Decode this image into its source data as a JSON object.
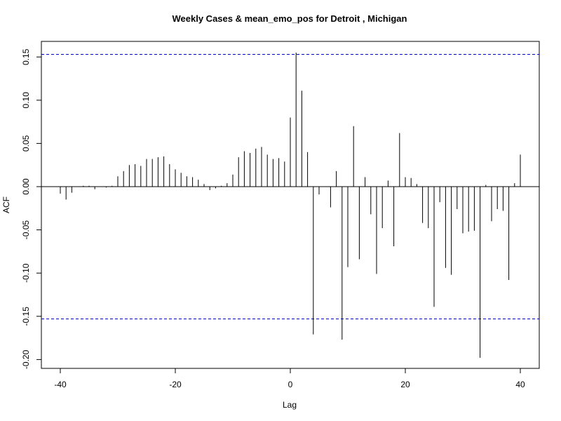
{
  "chart_data": {
    "type": "bar",
    "title": "Weekly Cases & mean_emo_pos for Detroit , Michigan",
    "xlabel": "Lag",
    "ylabel": "ACF",
    "xlim": [
      -40,
      40
    ],
    "ylim": [
      -0.21,
      0.165
    ],
    "x_ticks": [
      -40,
      -20,
      0,
      20,
      40
    ],
    "x_tick_labels": [
      "-40",
      "-20",
      "0",
      "20",
      "40"
    ],
    "y_ticks": [
      -0.2,
      -0.15,
      -0.1,
      -0.05,
      0.0,
      0.05,
      0.1,
      0.15
    ],
    "y_tick_labels": [
      "-0.20",
      "-0.15",
      "-0.10",
      "-0.05",
      "0.00",
      "0.05",
      "0.10",
      "0.15"
    ],
    "confidence_bound": 0.153,
    "confidence_color": "#0000cc",
    "bar_color": "#000000",
    "grid": false,
    "x": [
      -40,
      -39,
      -38,
      -37,
      -36,
      -35,
      -34,
      -33,
      -32,
      -31,
      -30,
      -29,
      -28,
      -27,
      -26,
      -25,
      -24,
      -23,
      -22,
      -21,
      -20,
      -19,
      -18,
      -17,
      -16,
      -15,
      -14,
      -13,
      -12,
      -11,
      -10,
      -9,
      -8,
      -7,
      -6,
      -5,
      -4,
      -3,
      -2,
      -1,
      0,
      1,
      2,
      3,
      4,
      5,
      6,
      7,
      8,
      9,
      10,
      11,
      12,
      13,
      14,
      15,
      16,
      17,
      18,
      19,
      20,
      21,
      22,
      23,
      24,
      25,
      26,
      27,
      28,
      29,
      30,
      31,
      32,
      33,
      34,
      35,
      36,
      37,
      38,
      39,
      40
    ],
    "values": [
      -0.008,
      -0.015,
      -0.007,
      0.0,
      0.001,
      0.001,
      -0.003,
      0.0,
      -0.001,
      0.001,
      0.012,
      0.018,
      0.025,
      0.026,
      0.024,
      0.032,
      0.032,
      0.034,
      0.035,
      0.026,
      0.02,
      0.016,
      0.012,
      0.011,
      0.008,
      0.003,
      -0.004,
      -0.002,
      0.001,
      0.004,
      0.014,
      0.034,
      0.041,
      0.039,
      0.044,
      0.046,
      0.037,
      0.032,
      0.033,
      0.029,
      0.08,
      0.155,
      0.111,
      0.04,
      -0.171,
      -0.009,
      0.0,
      -0.024,
      0.018,
      -0.177,
      -0.093,
      0.07,
      -0.084,
      0.011,
      -0.032,
      -0.101,
      -0.048,
      0.007,
      -0.069,
      0.062,
      0.011,
      0.01,
      0.003,
      -0.042,
      -0.048,
      -0.139,
      -0.018,
      -0.094,
      -0.102,
      -0.026,
      -0.054,
      -0.052,
      -0.051,
      -0.198,
      0.002,
      -0.04,
      -0.026,
      -0.028,
      -0.108,
      0.004,
      0.037
    ]
  }
}
